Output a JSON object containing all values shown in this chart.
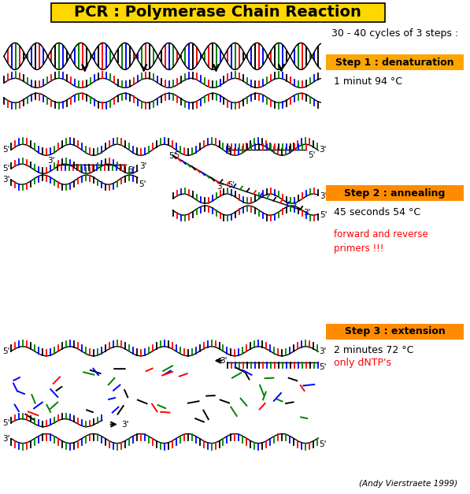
{
  "title": "PCR : Polymerase Chain Reaction",
  "title_bg": "#FFD700",
  "subtitle": "30 - 40 cycles of 3 steps :",
  "step1_label": "Step 1 : denaturation",
  "step1_detail": "1 minut 94 °C",
  "step2_label": "Step 2 : annealing",
  "step2_detail": "45 seconds 54 °C",
  "step2_red": "forward and reverse\nprimers !!!",
  "step3_label": "Step 3 : extension",
  "step3_detail": "2 minutes 72 °C",
  "step3_red": "only dNTP's",
  "credit": "(Andy Vierstraete 1999)",
  "bg_color": "#FFFFFF",
  "dna_colors": [
    "#000000",
    "#FF0000",
    "#0000FF",
    "#008000"
  ]
}
